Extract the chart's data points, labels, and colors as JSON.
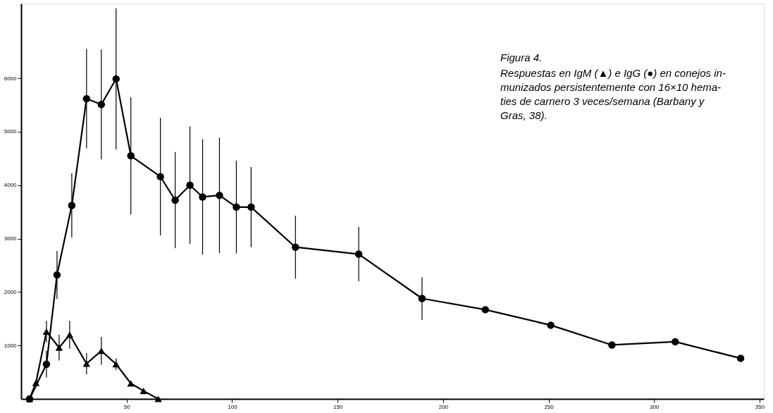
{
  "chart_data": {
    "type": "line",
    "annotations": [
      "Figura 4.",
      "Respuestas en IgM (▲) e IgG (●) en conejos in-\nmunizados persistentemente con 16×10 hema-\nties de carnero 3 veces/semana (Barbany y\nGras, 38)."
    ],
    "xlim": [
      0,
      352
    ],
    "xticks": [
      50,
      100,
      150,
      200,
      250,
      300,
      350
    ],
    "ylim": [
      0,
      7400
    ],
    "yticks": [
      1000,
      2000,
      3000,
      4000,
      5000,
      6000
    ],
    "grid": false,
    "line_style": "solid",
    "series": [
      {
        "color": "#000000",
        "marker": "triangle",
        "x": [
          4,
          7,
          12,
          18,
          23,
          31,
          38,
          45,
          52,
          58,
          65
        ],
        "values": [
          0,
          300,
          1260,
          960,
          1200,
          660,
          900,
          650,
          290,
          150,
          0
        ],
        "errors": [
          null,
          null,
          200,
          240,
          260,
          200,
          260,
          110,
          null,
          null,
          null
        ]
      },
      {
        "color": "#000000",
        "marker": "circle",
        "x": [
          4,
          12,
          17,
          24,
          31,
          38,
          45,
          52,
          66,
          73,
          80,
          86,
          94,
          102,
          109,
          130,
          160,
          190,
          220,
          251,
          280,
          310,
          341
        ],
        "values": [
          0,
          650,
          2320,
          3620,
          5620,
          5510,
          5990,
          4550,
          4160,
          3720,
          4000,
          3780,
          3810,
          3590,
          3590,
          2840,
          2710,
          1880,
          1670,
          1380,
          1010,
          1070,
          760
        ],
        "errors": [
          null,
          250,
          450,
          600,
          930,
          1030,
          1320,
          1100,
          1100,
          900,
          1100,
          1080,
          1080,
          870,
          750,
          590,
          510,
          400,
          null,
          null,
          null,
          null,
          null
        ]
      }
    ]
  }
}
